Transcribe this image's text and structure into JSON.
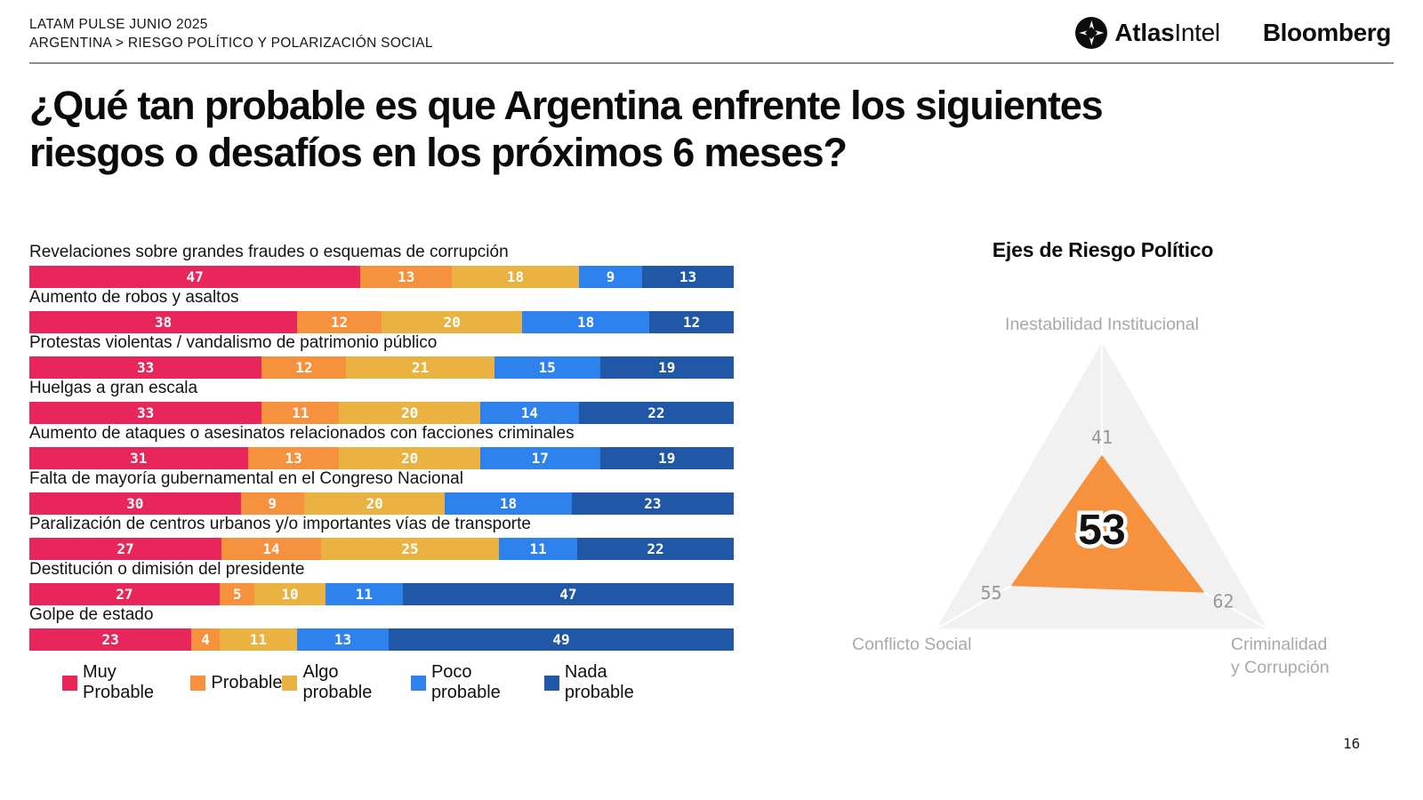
{
  "header": {
    "kicker_line1": "LATAM PULSE JUNIO 2025",
    "kicker_line2": "ARGENTINA > RIESGO POLÍTICO Y POLARIZACIÓN SOCIAL",
    "logos": {
      "atlasintel_bold": "Atlas",
      "atlasintel_regular": "Intel",
      "bloomberg": "Bloomberg"
    }
  },
  "title": {
    "line1": "¿Qué tan probable es que Argentina enfrente los siguientes",
    "line2": "riesgos o desafíos en los próximos 6 meses?"
  },
  "page_number": "16",
  "colors": {
    "muy_probable": "#E8265C",
    "probable": "#F6923D",
    "algo_probable": "#EAB240",
    "poco_probable": "#2E82EE",
    "nada_probable": "#2057A7",
    "radar_fill": "#F6923D",
    "radar_background": "#F1F1F1",
    "axis_label_gray": "#A8A8A8"
  },
  "chart_data": [
    {
      "type": "bar",
      "variant": "horizontal-stacked-100",
      "categories": [
        "Revelaciones sobre grandes fraudes o esquemas de corrupción",
        "Aumento de robos y asaltos",
        "Protestas violentas / vandalismo de patrimonio público",
        "Huelgas a gran escala",
        "Aumento de ataques o asesinatos relacionados con facciones criminales",
        "Falta de mayoría gubernamental en el Congreso Nacional",
        "Paralización de centros urbanos y/o importantes vías de transporte",
        "Destitución o dimisión del presidente",
        "Golpe de estado"
      ],
      "series": [
        {
          "name": "Muy Probable",
          "color": "#E8265C",
          "values": [
            47,
            38,
            33,
            33,
            31,
            30,
            27,
            27,
            23
          ]
        },
        {
          "name": "Probable",
          "color": "#F6923D",
          "values": [
            13,
            12,
            12,
            11,
            13,
            9,
            14,
            5,
            4
          ]
        },
        {
          "name": "Algo probable",
          "color": "#EAB240",
          "values": [
            18,
            20,
            21,
            20,
            20,
            20,
            25,
            10,
            11
          ]
        },
        {
          "name": "Poco probable",
          "color": "#2E82EE",
          "values": [
            9,
            18,
            15,
            14,
            17,
            18,
            11,
            11,
            13
          ]
        },
        {
          "name": "Nada probable",
          "color": "#2057A7",
          "values": [
            13,
            12,
            19,
            22,
            19,
            23,
            22,
            47,
            49
          ]
        }
      ],
      "xlim": [
        0,
        100
      ],
      "value_labels": "inside",
      "legend_position": "bottom"
    },
    {
      "type": "radar",
      "title": "Ejes de Riesgo Político",
      "axes": [
        "Inestabilidad Institucional",
        "Criminalidad y Corrupción",
        "Conflicto Social"
      ],
      "values": [
        41,
        62,
        55
      ],
      "center_value": "53",
      "scale_max": 100,
      "fill_color": "#F6923D",
      "background_color": "#F1F1F1",
      "grid": false,
      "legend_position": "none"
    }
  ]
}
